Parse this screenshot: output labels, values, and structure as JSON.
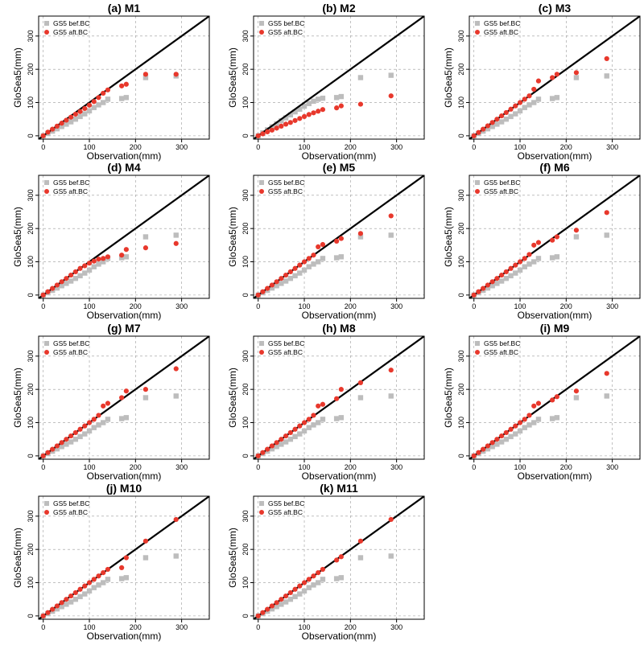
{
  "colors": {
    "before_bc": "#bdbdbd",
    "after_bc": "#e8382c",
    "reference_line": "#000000",
    "grid": "#9a9a9a"
  },
  "shared": {
    "xlabel": "Observation(mm)",
    "ylabel": "GloSea5(mm)",
    "legend": [
      "GS5 bef.BC",
      "GS5 aft.BC"
    ],
    "xlim": [
      -10,
      360
    ],
    "ylim": [
      -10,
      360
    ],
    "ticks": [
      0,
      100,
      200,
      300
    ],
    "grid": true,
    "legend_position": "top-left"
  },
  "chart_data": [
    {
      "type": "scatter",
      "title": "(a) M1",
      "series": [
        {
          "name": "GS5 bef.BC",
          "x": [
            0,
            10,
            20,
            30,
            40,
            50,
            60,
            70,
            80,
            90,
            100,
            110,
            120,
            130,
            140,
            170,
            180,
            222,
            288
          ],
          "y": [
            0,
            7,
            14,
            21,
            28,
            35,
            42,
            50,
            58,
            66,
            75,
            85,
            93,
            100,
            110,
            112,
            115,
            175,
            180
          ]
        },
        {
          "name": "GS5 aft.BC",
          "x": [
            0,
            10,
            20,
            30,
            40,
            50,
            60,
            70,
            80,
            90,
            100,
            110,
            120,
            130,
            140,
            170,
            180,
            222,
            288
          ],
          "y": [
            0,
            11,
            20,
            29,
            38,
            47,
            56,
            65,
            73,
            82,
            92,
            103,
            115,
            128,
            138,
            150,
            155,
            185,
            185
          ]
        }
      ],
      "reference_line": "y = x"
    },
    {
      "type": "scatter",
      "title": "(b) M2",
      "series": [
        {
          "name": "GS5 bef.BC",
          "x": [
            0,
            10,
            20,
            30,
            40,
            50,
            60,
            70,
            80,
            90,
            100,
            110,
            120,
            130,
            140,
            170,
            180,
            222,
            288
          ],
          "y": [
            0,
            9,
            18,
            27,
            36,
            45,
            54,
            63,
            72,
            80,
            89,
            97,
            104,
            110,
            113,
            115,
            118,
            175,
            182
          ]
        },
        {
          "name": "GS5 aft.BC",
          "x": [
            0,
            10,
            20,
            30,
            40,
            50,
            60,
            70,
            80,
            90,
            100,
            110,
            120,
            130,
            140,
            170,
            180,
            222,
            288
          ],
          "y": [
            0,
            6,
            12,
            17,
            23,
            29,
            35,
            40,
            46,
            52,
            58,
            64,
            69,
            74,
            79,
            84,
            90,
            95,
            120
          ]
        }
      ],
      "reference_line": "y = x"
    },
    {
      "type": "scatter",
      "title": "(c) M3",
      "series": [
        {
          "name": "GS5 bef.BC",
          "x": [
            0,
            10,
            20,
            30,
            40,
            50,
            60,
            70,
            80,
            90,
            100,
            110,
            120,
            130,
            140,
            170,
            180,
            222,
            288
          ],
          "y": [
            0,
            7,
            14,
            21,
            28,
            35,
            42,
            50,
            58,
            66,
            75,
            85,
            93,
            100,
            110,
            112,
            115,
            175,
            180
          ]
        },
        {
          "name": "GS5 aft.BC",
          "x": [
            0,
            10,
            20,
            30,
            40,
            50,
            60,
            70,
            80,
            90,
            100,
            110,
            120,
            130,
            140,
            170,
            180,
            222,
            288
          ],
          "y": [
            0,
            10,
            20,
            30,
            40,
            50,
            60,
            70,
            80,
            90,
            100,
            110,
            120,
            140,
            165,
            175,
            185,
            190,
            232
          ]
        }
      ],
      "reference_line": "y = x"
    },
    {
      "type": "scatter",
      "title": "(d) M4",
      "series": [
        {
          "name": "GS5 bef.BC",
          "x": [
            0,
            10,
            20,
            30,
            40,
            50,
            60,
            70,
            80,
            90,
            100,
            110,
            120,
            130,
            140,
            170,
            180,
            222,
            288
          ],
          "y": [
            0,
            7,
            14,
            21,
            28,
            35,
            42,
            50,
            58,
            66,
            75,
            85,
            93,
            100,
            110,
            112,
            115,
            175,
            180
          ]
        },
        {
          "name": "GS5 aft.BC",
          "x": [
            0,
            10,
            20,
            30,
            40,
            50,
            60,
            70,
            80,
            90,
            100,
            110,
            120,
            130,
            140,
            170,
            180,
            222,
            288
          ],
          "y": [
            0,
            10,
            20,
            30,
            40,
            50,
            60,
            70,
            80,
            88,
            96,
            102,
            108,
            110,
            115,
            120,
            137,
            142,
            155
          ]
        }
      ],
      "reference_line": "y = x"
    },
    {
      "type": "scatter",
      "title": "(e) M5",
      "series": [
        {
          "name": "GS5 bef.BC",
          "x": [
            0,
            10,
            20,
            30,
            40,
            50,
            60,
            70,
            80,
            90,
            100,
            110,
            120,
            130,
            140,
            170,
            180,
            222,
            288
          ],
          "y": [
            0,
            7,
            14,
            21,
            28,
            35,
            42,
            50,
            58,
            66,
            75,
            85,
            93,
            100,
            110,
            112,
            115,
            175,
            180
          ]
        },
        {
          "name": "GS5 aft.BC",
          "x": [
            0,
            10,
            20,
            30,
            40,
            50,
            60,
            70,
            80,
            90,
            100,
            110,
            120,
            130,
            140,
            170,
            180,
            222,
            288
          ],
          "y": [
            0,
            10,
            20,
            30,
            40,
            50,
            60,
            70,
            80,
            90,
            100,
            110,
            120,
            145,
            152,
            162,
            170,
            185,
            238
          ]
        }
      ],
      "reference_line": "y = x"
    },
    {
      "type": "scatter",
      "title": "(f) M6",
      "series": [
        {
          "name": "GS5 bef.BC",
          "x": [
            0,
            10,
            20,
            30,
            40,
            50,
            60,
            70,
            80,
            90,
            100,
            110,
            120,
            130,
            140,
            170,
            180,
            222,
            288
          ],
          "y": [
            0,
            7,
            14,
            21,
            28,
            35,
            42,
            50,
            58,
            66,
            75,
            85,
            93,
            100,
            110,
            112,
            115,
            175,
            180
          ]
        },
        {
          "name": "GS5 aft.BC",
          "x": [
            0,
            10,
            20,
            30,
            40,
            50,
            60,
            70,
            80,
            90,
            100,
            110,
            120,
            130,
            140,
            170,
            180,
            222,
            288
          ],
          "y": [
            0,
            10,
            20,
            30,
            40,
            50,
            60,
            70,
            80,
            90,
            100,
            110,
            122,
            150,
            158,
            165,
            175,
            195,
            248
          ]
        }
      ],
      "reference_line": "y = x"
    },
    {
      "type": "scatter",
      "title": "(g) M7",
      "series": [
        {
          "name": "GS5 bef.BC",
          "x": [
            0,
            10,
            20,
            30,
            40,
            50,
            60,
            70,
            80,
            90,
            100,
            110,
            120,
            130,
            140,
            170,
            180,
            222,
            288
          ],
          "y": [
            0,
            7,
            14,
            21,
            28,
            35,
            42,
            50,
            58,
            66,
            75,
            85,
            93,
            100,
            110,
            112,
            115,
            175,
            180
          ]
        },
        {
          "name": "GS5 aft.BC",
          "x": [
            0,
            10,
            20,
            30,
            40,
            50,
            60,
            70,
            80,
            90,
            100,
            110,
            120,
            130,
            140,
            170,
            180,
            222,
            288
          ],
          "y": [
            0,
            10,
            20,
            30,
            40,
            50,
            60,
            70,
            80,
            90,
            100,
            110,
            122,
            150,
            158,
            175,
            195,
            200,
            262
          ]
        }
      ],
      "reference_line": "y = x"
    },
    {
      "type": "scatter",
      "title": "(h) M8",
      "series": [
        {
          "name": "GS5 bef.BC",
          "x": [
            0,
            10,
            20,
            30,
            40,
            50,
            60,
            70,
            80,
            90,
            100,
            110,
            120,
            130,
            140,
            170,
            180,
            222,
            288
          ],
          "y": [
            0,
            7,
            14,
            21,
            28,
            35,
            42,
            50,
            58,
            66,
            75,
            85,
            93,
            100,
            110,
            112,
            115,
            175,
            180
          ]
        },
        {
          "name": "GS5 aft.BC",
          "x": [
            0,
            10,
            20,
            30,
            40,
            50,
            60,
            70,
            80,
            90,
            100,
            110,
            120,
            130,
            140,
            170,
            180,
            222,
            288
          ],
          "y": [
            0,
            10,
            20,
            30,
            40,
            50,
            60,
            70,
            80,
            90,
            100,
            110,
            122,
            150,
            155,
            172,
            200,
            220,
            258
          ]
        }
      ],
      "reference_line": "y = x"
    },
    {
      "type": "scatter",
      "title": "(i) M9",
      "series": [
        {
          "name": "GS5 bef.BC",
          "x": [
            0,
            10,
            20,
            30,
            40,
            50,
            60,
            70,
            80,
            90,
            100,
            110,
            120,
            130,
            140,
            170,
            180,
            222,
            288
          ],
          "y": [
            0,
            7,
            14,
            21,
            28,
            35,
            42,
            50,
            58,
            66,
            75,
            85,
            93,
            100,
            110,
            112,
            115,
            175,
            180
          ]
        },
        {
          "name": "GS5 aft.BC",
          "x": [
            0,
            10,
            20,
            30,
            40,
            50,
            60,
            70,
            80,
            90,
            100,
            110,
            120,
            130,
            140,
            170,
            180,
            222,
            288
          ],
          "y": [
            0,
            10,
            20,
            30,
            40,
            50,
            60,
            70,
            80,
            90,
            100,
            110,
            122,
            150,
            158,
            168,
            178,
            195,
            248
          ]
        }
      ],
      "reference_line": "y = x"
    },
    {
      "type": "scatter",
      "title": "(j) M10",
      "series": [
        {
          "name": "GS5 bef.BC",
          "x": [
            0,
            10,
            20,
            30,
            40,
            50,
            60,
            70,
            80,
            90,
            100,
            110,
            120,
            130,
            140,
            170,
            180,
            222,
            288
          ],
          "y": [
            0,
            7,
            14,
            21,
            28,
            35,
            42,
            50,
            58,
            66,
            75,
            85,
            93,
            100,
            110,
            112,
            115,
            175,
            180
          ]
        },
        {
          "name": "GS5 aft.BC",
          "x": [
            0,
            10,
            20,
            30,
            40,
            50,
            60,
            70,
            80,
            90,
            100,
            110,
            120,
            130,
            140,
            170,
            180,
            222,
            288
          ],
          "y": [
            0,
            10,
            20,
            30,
            40,
            50,
            60,
            70,
            80,
            90,
            100,
            110,
            120,
            130,
            140,
            145,
            175,
            225,
            290
          ]
        }
      ],
      "reference_line": "y = x"
    },
    {
      "type": "scatter",
      "title": "(k) M11",
      "series": [
        {
          "name": "GS5 bef.BC",
          "x": [
            0,
            10,
            20,
            30,
            40,
            50,
            60,
            70,
            80,
            90,
            100,
            110,
            120,
            130,
            140,
            170,
            180,
            222,
            288
          ],
          "y": [
            0,
            7,
            14,
            21,
            28,
            35,
            42,
            50,
            58,
            66,
            75,
            85,
            93,
            100,
            110,
            112,
            115,
            175,
            180
          ]
        },
        {
          "name": "GS5 aft.BC",
          "x": [
            0,
            10,
            20,
            30,
            40,
            50,
            60,
            70,
            80,
            90,
            100,
            110,
            120,
            130,
            140,
            170,
            180,
            222,
            288
          ],
          "y": [
            0,
            10,
            20,
            30,
            40,
            50,
            60,
            70,
            80,
            90,
            100,
            110,
            120,
            130,
            140,
            168,
            178,
            225,
            290
          ]
        }
      ],
      "reference_line": "y = x"
    }
  ]
}
